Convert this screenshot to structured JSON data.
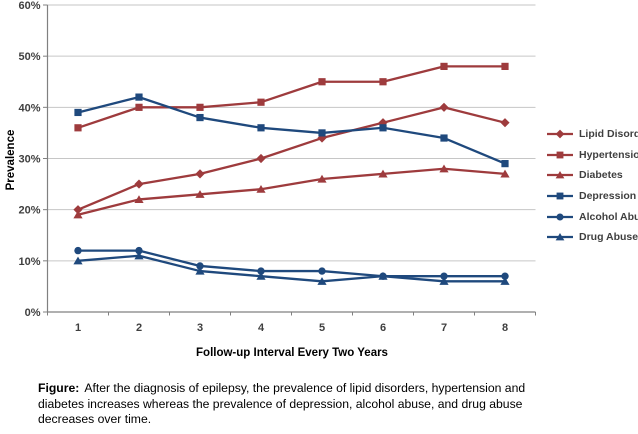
{
  "chart_data": {
    "type": "line",
    "title": "",
    "xlabel": "Follow-up Interval Every Two Years",
    "ylabel": "Prevalence",
    "categories": [
      "1",
      "2",
      "3",
      "4",
      "5",
      "6",
      "7",
      "8"
    ],
    "y_ticks": [
      "0%",
      "10%",
      "20%",
      "30%",
      "40%",
      "50%",
      "60%"
    ],
    "ylim": [
      0,
      60
    ],
    "grid": true,
    "legend_position": "right",
    "colors": {
      "red_series": "#9e3b3d",
      "blue_series": "#1f497d",
      "gridline": "#c6c6c6",
      "axis": "#808080"
    },
    "series": [
      {
        "name": "Lipid Disorders",
        "color": "#9e3b3d",
        "marker": "diamond",
        "values": [
          20,
          25,
          27,
          30,
          34,
          37,
          40,
          37
        ]
      },
      {
        "name": "Hypertension",
        "color": "#9e3b3d",
        "marker": "square",
        "values": [
          36,
          40,
          40,
          41,
          45,
          45,
          48,
          48
        ]
      },
      {
        "name": "Diabetes",
        "color": "#9e3b3d",
        "marker": "triangle",
        "values": [
          19,
          22,
          23,
          24,
          26,
          27,
          28,
          27
        ]
      },
      {
        "name": "Depression",
        "color": "#1f497d",
        "marker": "square",
        "values": [
          39,
          42,
          38,
          36,
          35,
          36,
          34,
          29
        ]
      },
      {
        "name": "Alcohol Abuse",
        "color": "#1f497d",
        "marker": "circle",
        "values": [
          12,
          12,
          9,
          8,
          8,
          7,
          7,
          7
        ]
      },
      {
        "name": "Drug Abuse",
        "color": "#1f497d",
        "marker": "triangle",
        "values": [
          10,
          11,
          8,
          7,
          6,
          7,
          6,
          6
        ]
      }
    ]
  },
  "caption": {
    "prefix": "Figure:",
    "line1": "After the diagnosis of epilepsy, the prevalence of lipid disorders, hypertension and",
    "line2": "diabetes increases whereas the prevalence of depression, alcohol abuse, and drug abuse",
    "line3": "decreases over time."
  }
}
